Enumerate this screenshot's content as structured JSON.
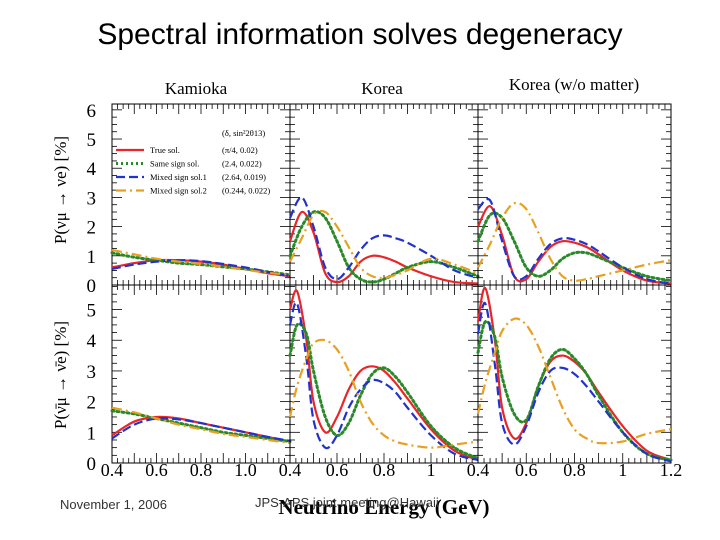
{
  "slide": {
    "title": "Spectral information solves degeneracy",
    "footer_date": "November 1, 2006",
    "footer_meeting": "JPS-APS joint meeting@Hawaii"
  },
  "chart_data": {
    "type": "line",
    "panel_titles": [
      "Kamioka",
      "Korea",
      "Korea (w/o matter)"
    ],
    "xlabel": "Neutrino Energy (GeV)",
    "ylabel_top": "P(νμ → νe) [%]",
    "ylabel_bottom": "P(ν̄μ → ν̄e) [%]",
    "x_tick_labels": {
      "kamioka": [
        "0.4",
        "0.6",
        "0.8",
        "1.0"
      ],
      "korea": [
        "0.4",
        "0.6",
        "0.8",
        "1"
      ],
      "korea_wo_matter": [
        "0.4",
        "0.6",
        "0.8",
        "1",
        "1.2"
      ]
    },
    "y_tick_labels_top": [
      "0",
      "1",
      "2",
      "3",
      "4",
      "5",
      "6"
    ],
    "y_tick_labels_bottom": [
      "0",
      "1",
      "2",
      "3",
      "4",
      "5"
    ],
    "kamioka_xlim": [
      0.4,
      1.2
    ],
    "korea_xlim": [
      0.4,
      1.2
    ],
    "ylim_top": [
      0,
      6.2
    ],
    "ylim_bottom": [
      0,
      5.8
    ],
    "legend": {
      "header": "(δ, sin²2θ13)",
      "entries": [
        {
          "name": "True sol.",
          "value": "(π/4, 0.02)",
          "color": "#e8262a",
          "style": "solid"
        },
        {
          "name": "Same sign sol.",
          "value": "(2.4, 0.022)",
          "color": "#2a8a2a",
          "style": "dotted"
        },
        {
          "name": "Mixed sign sol.1",
          "value": "(2.64, 0.019)",
          "color": "#2233cc",
          "style": "dashed"
        },
        {
          "name": "Mixed sign sol.2",
          "value": "(0.244, 0.022)",
          "color": "#e8a020",
          "style": "dashdot"
        }
      ]
    },
    "panels": [
      {
        "id": "kamioka-nu",
        "series": [
          {
            "x": [
              0.4,
              0.5,
              0.6,
              0.7,
              0.8,
              0.9,
              1.0,
              1.1,
              1.2
            ],
            "y": [
              0.6,
              0.75,
              0.85,
              0.85,
              0.8,
              0.7,
              0.55,
              0.4,
              0.3
            ]
          },
          {
            "x": [
              0.4,
              0.5,
              0.6,
              0.7,
              0.8,
              0.9,
              1.0,
              1.1,
              1.2
            ],
            "y": [
              1.1,
              0.95,
              0.85,
              0.75,
              0.7,
              0.62,
              0.55,
              0.45,
              0.35
            ]
          },
          {
            "x": [
              0.4,
              0.5,
              0.6,
              0.7,
              0.8,
              0.9,
              1.0,
              1.1,
              1.2
            ],
            "y": [
              0.55,
              0.7,
              0.8,
              0.85,
              0.82,
              0.72,
              0.6,
              0.45,
              0.3
            ]
          },
          {
            "x": [
              0.4,
              0.5,
              0.6,
              0.7,
              0.8,
              0.9,
              1.0,
              1.1,
              1.2
            ],
            "y": [
              1.2,
              1.05,
              0.9,
              0.8,
              0.72,
              0.62,
              0.52,
              0.42,
              0.35
            ]
          }
        ]
      },
      {
        "id": "korea-nu",
        "series": [
          {
            "x": [
              0.4,
              0.45,
              0.5,
              0.55,
              0.6,
              0.65,
              0.7,
              0.75,
              0.8,
              0.85,
              0.9,
              1.0,
              1.1,
              1.2
            ],
            "y": [
              1.5,
              2.5,
              1.8,
              0.4,
              0.1,
              0.3,
              0.8,
              1.0,
              0.95,
              0.8,
              0.6,
              0.3,
              0.1,
              0.05
            ]
          },
          {
            "x": [
              0.4,
              0.45,
              0.5,
              0.55,
              0.6,
              0.65,
              0.7,
              0.75,
              0.8,
              0.85,
              0.9,
              1.0,
              1.1,
              1.2
            ],
            "y": [
              1.0,
              2.0,
              2.5,
              2.3,
              1.5,
              0.6,
              0.2,
              0.1,
              0.2,
              0.4,
              0.6,
              0.8,
              0.6,
              0.3
            ]
          },
          {
            "x": [
              0.4,
              0.45,
              0.5,
              0.55,
              0.6,
              0.65,
              0.7,
              0.75,
              0.8,
              0.85,
              0.9,
              1.0,
              1.1,
              1.2
            ],
            "y": [
              2.3,
              3.0,
              2.0,
              0.6,
              0.2,
              0.6,
              1.2,
              1.6,
              1.7,
              1.6,
              1.45,
              1.0,
              0.5,
              0.25
            ]
          },
          {
            "x": [
              0.4,
              0.45,
              0.5,
              0.55,
              0.6,
              0.65,
              0.7,
              0.75,
              0.8,
              0.85,
              0.9,
              1.0,
              1.1,
              1.2
            ],
            "y": [
              0.8,
              1.6,
              2.4,
              2.5,
              2.0,
              1.3,
              0.6,
              0.3,
              0.25,
              0.35,
              0.5,
              0.9,
              0.7,
              0.4
            ]
          }
        ]
      },
      {
        "id": "korea-wo-nu",
        "series": [
          {
            "x": [
              0.4,
              0.45,
              0.5,
              0.55,
              0.6,
              0.65,
              0.7,
              0.75,
              0.8,
              0.85,
              0.9,
              1.0,
              1.1,
              1.2
            ],
            "y": [
              2.0,
              2.7,
              1.7,
              0.3,
              0.2,
              0.8,
              1.3,
              1.5,
              1.45,
              1.3,
              1.05,
              0.5,
              0.15,
              0.05
            ]
          },
          {
            "x": [
              0.4,
              0.45,
              0.5,
              0.55,
              0.6,
              0.65,
              0.7,
              0.75,
              0.8,
              0.85,
              0.9,
              1.0,
              1.1,
              1.2
            ],
            "y": [
              1.5,
              2.4,
              2.3,
              1.5,
              0.6,
              0.3,
              0.5,
              0.9,
              1.1,
              1.1,
              0.95,
              0.6,
              0.3,
              0.15
            ]
          },
          {
            "x": [
              0.4,
              0.45,
              0.5,
              0.55,
              0.6,
              0.65,
              0.7,
              0.75,
              0.8,
              0.85,
              0.9,
              1.0,
              1.1,
              1.2
            ],
            "y": [
              2.6,
              2.9,
              1.5,
              0.3,
              0.3,
              0.9,
              1.4,
              1.6,
              1.55,
              1.4,
              1.15,
              0.6,
              0.2,
              0.05
            ]
          },
          {
            "x": [
              0.4,
              0.45,
              0.5,
              0.55,
              0.6,
              0.65,
              0.7,
              0.75,
              0.8,
              0.85,
              0.9,
              1.0,
              1.1,
              1.2
            ],
            "y": [
              0.6,
              1.4,
              2.3,
              2.8,
              2.6,
              1.8,
              0.9,
              0.3,
              0.15,
              0.2,
              0.3,
              0.5,
              0.7,
              0.85
            ]
          }
        ]
      },
      {
        "id": "kamioka-nubar",
        "series": [
          {
            "x": [
              0.4,
              0.5,
              0.6,
              0.7,
              0.8,
              0.9,
              1.0,
              1.1,
              1.2
            ],
            "y": [
              0.9,
              1.35,
              1.5,
              1.45,
              1.3,
              1.15,
              1.0,
              0.85,
              0.7
            ]
          },
          {
            "x": [
              0.4,
              0.5,
              0.6,
              0.7,
              0.8,
              0.9,
              1.0,
              1.1,
              1.2
            ],
            "y": [
              1.7,
              1.6,
              1.45,
              1.3,
              1.15,
              1.0,
              0.9,
              0.8,
              0.7
            ]
          },
          {
            "x": [
              0.4,
              0.5,
              0.6,
              0.7,
              0.8,
              0.9,
              1.0,
              1.1,
              1.2
            ],
            "y": [
              0.8,
              1.25,
              1.45,
              1.42,
              1.3,
              1.15,
              1.0,
              0.85,
              0.72
            ]
          },
          {
            "x": [
              0.4,
              0.5,
              0.6,
              0.7,
              0.8,
              0.9,
              1.0,
              1.1,
              1.2
            ],
            "y": [
              1.8,
              1.65,
              1.45,
              1.25,
              1.1,
              0.95,
              0.85,
              0.75,
              0.65
            ]
          }
        ]
      },
      {
        "id": "korea-nubar",
        "series": [
          {
            "x": [
              0.4,
              0.43,
              0.47,
              0.5,
              0.55,
              0.6,
              0.65,
              0.7,
              0.75,
              0.8,
              0.85,
              0.9,
              1.0,
              1.1,
              1.2
            ],
            "y": [
              5.0,
              5.6,
              4.0,
              2.0,
              1.0,
              1.5,
              2.4,
              3.0,
              3.15,
              3.0,
              2.6,
              2.1,
              1.1,
              0.4,
              0.1
            ]
          },
          {
            "x": [
              0.4,
              0.43,
              0.47,
              0.5,
              0.55,
              0.6,
              0.65,
              0.7,
              0.75,
              0.8,
              0.85,
              0.9,
              1.0,
              1.1,
              1.2
            ],
            "y": [
              3.5,
              4.5,
              4.2,
              3.0,
              1.5,
              0.9,
              1.3,
              2.2,
              2.9,
              3.1,
              2.8,
              2.3,
              1.2,
              0.5,
              0.15
            ]
          },
          {
            "x": [
              0.4,
              0.43,
              0.47,
              0.5,
              0.55,
              0.6,
              0.65,
              0.7,
              0.75,
              0.8,
              0.85,
              0.9,
              1.0,
              1.1,
              1.2
            ],
            "y": [
              4.5,
              5.2,
              3.4,
              1.4,
              0.5,
              0.9,
              1.8,
              2.4,
              2.7,
              2.6,
              2.3,
              1.8,
              0.9,
              0.3,
              0.1
            ]
          },
          {
            "x": [
              0.4,
              0.43,
              0.47,
              0.5,
              0.55,
              0.6,
              0.65,
              0.7,
              0.75,
              0.8,
              0.85,
              0.9,
              1.0,
              1.1,
              1.2
            ],
            "y": [
              1.5,
              2.5,
              3.4,
              3.9,
              4.0,
              3.7,
              3.0,
              2.0,
              1.3,
              0.9,
              0.7,
              0.6,
              0.5,
              0.6,
              0.7
            ]
          }
        ]
      },
      {
        "id": "korea-wo-nubar",
        "series": [
          {
            "x": [
              0.4,
              0.43,
              0.47,
              0.5,
              0.55,
              0.6,
              0.65,
              0.7,
              0.75,
              0.8,
              0.85,
              0.9,
              1.0,
              1.1,
              1.2
            ],
            "y": [
              4.6,
              5.7,
              4.0,
              1.8,
              0.8,
              1.3,
              2.5,
              3.3,
              3.5,
              3.3,
              2.9,
              2.3,
              1.2,
              0.4,
              0.1
            ]
          },
          {
            "x": [
              0.4,
              0.43,
              0.47,
              0.5,
              0.55,
              0.6,
              0.65,
              0.7,
              0.75,
              0.8,
              0.85,
              0.9,
              1.0,
              1.1,
              1.2
            ],
            "y": [
              3.6,
              4.6,
              4.1,
              2.8,
              1.6,
              1.4,
              2.5,
              3.4,
              3.7,
              3.4,
              2.9,
              2.2,
              1.0,
              0.3,
              0.1
            ]
          },
          {
            "x": [
              0.4,
              0.43,
              0.47,
              0.5,
              0.55,
              0.6,
              0.65,
              0.7,
              0.75,
              0.8,
              0.85,
              0.9,
              1.0,
              1.1,
              1.2
            ],
            "y": [
              4.2,
              5.2,
              3.2,
              1.3,
              0.6,
              1.2,
              2.3,
              3.0,
              3.1,
              2.9,
              2.5,
              2.0,
              1.0,
              0.3,
              0.05
            ]
          },
          {
            "x": [
              0.4,
              0.43,
              0.47,
              0.5,
              0.55,
              0.6,
              0.65,
              0.7,
              0.75,
              0.8,
              0.85,
              0.9,
              1.0,
              1.1,
              1.2
            ],
            "y": [
              1.6,
              2.6,
              3.6,
              4.3,
              4.7,
              4.5,
              3.8,
              2.8,
              1.8,
              1.1,
              0.8,
              0.65,
              0.7,
              0.95,
              1.1
            ]
          }
        ]
      }
    ]
  }
}
